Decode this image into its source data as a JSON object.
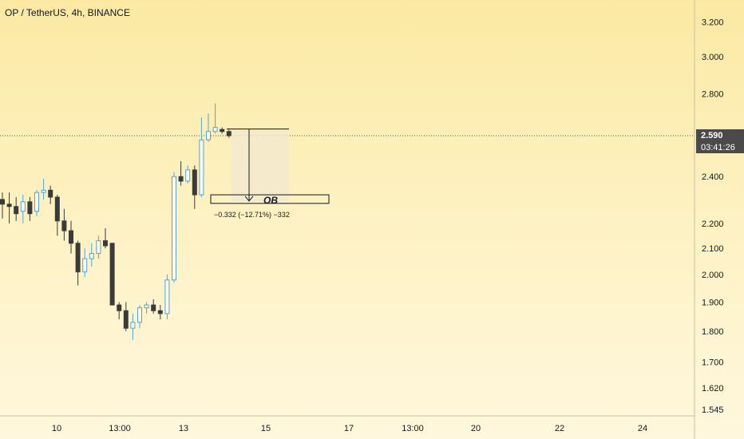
{
  "header": {
    "title": "OP / TetherUS, 4h, BINANCE"
  },
  "price_axis": {
    "ticks": [
      "3.200",
      "3.000",
      "2.800",
      "2.400",
      "2.200",
      "2.100",
      "2.000",
      "1.900",
      "1.800",
      "1.700",
      "1.620",
      "1.545"
    ],
    "current_price": "2.590",
    "countdown": "03:41:26"
  },
  "time_axis": {
    "ticks": [
      "10",
      "13:00",
      "13",
      "15",
      "17",
      "13:00",
      "20",
      "22",
      "24"
    ]
  },
  "drawings": {
    "ob_label": "OB",
    "measure_label": "−0.332 (−12.71%) −332"
  },
  "colors": {
    "up": "#4fa6d6",
    "down": "#3a3a3a",
    "accent": "#131722"
  },
  "chart_data": {
    "type": "candlestick",
    "title": "OP / TetherUS, 4h, BINANCE",
    "y_scale": "log",
    "ylim": [
      1.545,
      3.3
    ],
    "current_price": 2.59,
    "candles": [
      {
        "o": 2.3,
        "h": 2.33,
        "l": 2.22,
        "c": 2.28
      },
      {
        "o": 2.28,
        "h": 2.33,
        "l": 2.2,
        "c": 2.27
      },
      {
        "o": 2.27,
        "h": 2.31,
        "l": 2.21,
        "c": 2.24
      },
      {
        "o": 2.25,
        "h": 2.32,
        "l": 2.2,
        "c": 2.29
      },
      {
        "o": 2.29,
        "h": 2.31,
        "l": 2.21,
        "c": 2.24
      },
      {
        "o": 2.25,
        "h": 2.34,
        "l": 2.23,
        "c": 2.33
      },
      {
        "o": 2.33,
        "h": 2.39,
        "l": 2.3,
        "c": 2.34
      },
      {
        "o": 2.34,
        "h": 2.36,
        "l": 2.28,
        "c": 2.31
      },
      {
        "o": 2.31,
        "h": 2.32,
        "l": 2.15,
        "c": 2.21
      },
      {
        "o": 2.21,
        "h": 2.26,
        "l": 2.13,
        "c": 2.17
      },
      {
        "o": 2.17,
        "h": 2.21,
        "l": 2.08,
        "c": 2.12
      },
      {
        "o": 2.12,
        "h": 2.13,
        "l": 1.96,
        "c": 2.01
      },
      {
        "o": 2.01,
        "h": 2.1,
        "l": 1.99,
        "c": 2.06
      },
      {
        "o": 2.06,
        "h": 2.12,
        "l": 2.03,
        "c": 2.08
      },
      {
        "o": 2.08,
        "h": 2.15,
        "l": 2.06,
        "c": 2.13
      },
      {
        "o": 2.13,
        "h": 2.18,
        "l": 2.1,
        "c": 2.11
      },
      {
        "o": 2.12,
        "h": 2.12,
        "l": 1.89,
        "c": 1.89
      },
      {
        "o": 1.89,
        "h": 1.9,
        "l": 1.84,
        "c": 1.87
      },
      {
        "o": 1.87,
        "h": 1.9,
        "l": 1.8,
        "c": 1.81
      },
      {
        "o": 1.81,
        "h": 1.86,
        "l": 1.77,
        "c": 1.83
      },
      {
        "o": 1.83,
        "h": 1.89,
        "l": 1.81,
        "c": 1.88
      },
      {
        "o": 1.88,
        "h": 1.9,
        "l": 1.86,
        "c": 1.89
      },
      {
        "o": 1.89,
        "h": 1.91,
        "l": 1.86,
        "c": 1.87
      },
      {
        "o": 1.87,
        "h": 1.89,
        "l": 1.84,
        "c": 1.86
      },
      {
        "o": 1.86,
        "h": 2.0,
        "l": 1.84,
        "c": 1.98
      },
      {
        "o": 1.98,
        "h": 2.42,
        "l": 1.97,
        "c": 2.4
      },
      {
        "o": 2.4,
        "h": 2.47,
        "l": 2.36,
        "c": 2.38
      },
      {
        "o": 2.38,
        "h": 2.45,
        "l": 2.37,
        "c": 2.43
      },
      {
        "o": 2.43,
        "h": 2.45,
        "l": 2.26,
        "c": 2.32
      },
      {
        "o": 2.32,
        "h": 2.68,
        "l": 2.31,
        "c": 2.57
      },
      {
        "o": 2.57,
        "h": 2.7,
        "l": 2.56,
        "c": 2.61
      },
      {
        "o": 2.61,
        "h": 2.75,
        "l": 2.6,
        "c": 2.63
      },
      {
        "o": 2.62,
        "h": 2.63,
        "l": 2.6,
        "c": 2.61
      },
      {
        "o": 2.61,
        "h": 2.62,
        "l": 2.58,
        "c": 2.59
      }
    ],
    "annotations": [
      {
        "type": "measure",
        "from": 2.622,
        "to": 2.29,
        "label": "−0.332 (−12.71%) −332"
      },
      {
        "type": "box",
        "label": "OB",
        "top": 2.32,
        "bottom": 2.29
      }
    ]
  }
}
